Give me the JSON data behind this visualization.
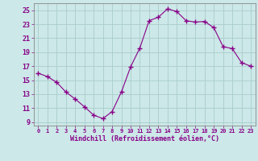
{
  "x": [
    0,
    1,
    2,
    3,
    4,
    5,
    6,
    7,
    8,
    9,
    10,
    11,
    12,
    13,
    14,
    15,
    16,
    17,
    18,
    19,
    20,
    21,
    22,
    23
  ],
  "y": [
    16.0,
    15.5,
    14.7,
    13.3,
    12.3,
    11.2,
    10.0,
    9.5,
    10.5,
    13.3,
    16.9,
    19.6,
    23.5,
    24.0,
    25.2,
    24.8,
    23.5,
    23.3,
    23.4,
    22.5,
    19.8,
    19.5,
    17.5,
    17.0
  ],
  "line_color": "#880088",
  "marker": "+",
  "marker_size": 4,
  "bg_color": "#cce8e8",
  "grid_color": "#aacccc",
  "xlabel": "Windchill (Refroidissement éolien,°C)",
  "xlim": [
    -0.5,
    23.5
  ],
  "ylim": [
    8.5,
    26.0
  ],
  "yticks": [
    9,
    11,
    13,
    15,
    17,
    19,
    21,
    23,
    25
  ],
  "xticks": [
    0,
    1,
    2,
    3,
    4,
    5,
    6,
    7,
    8,
    9,
    10,
    11,
    12,
    13,
    14,
    15,
    16,
    17,
    18,
    19,
    20,
    21,
    22,
    23
  ],
  "tick_color": "#880088",
  "label_color": "#880088",
  "axis_color": "#888888"
}
